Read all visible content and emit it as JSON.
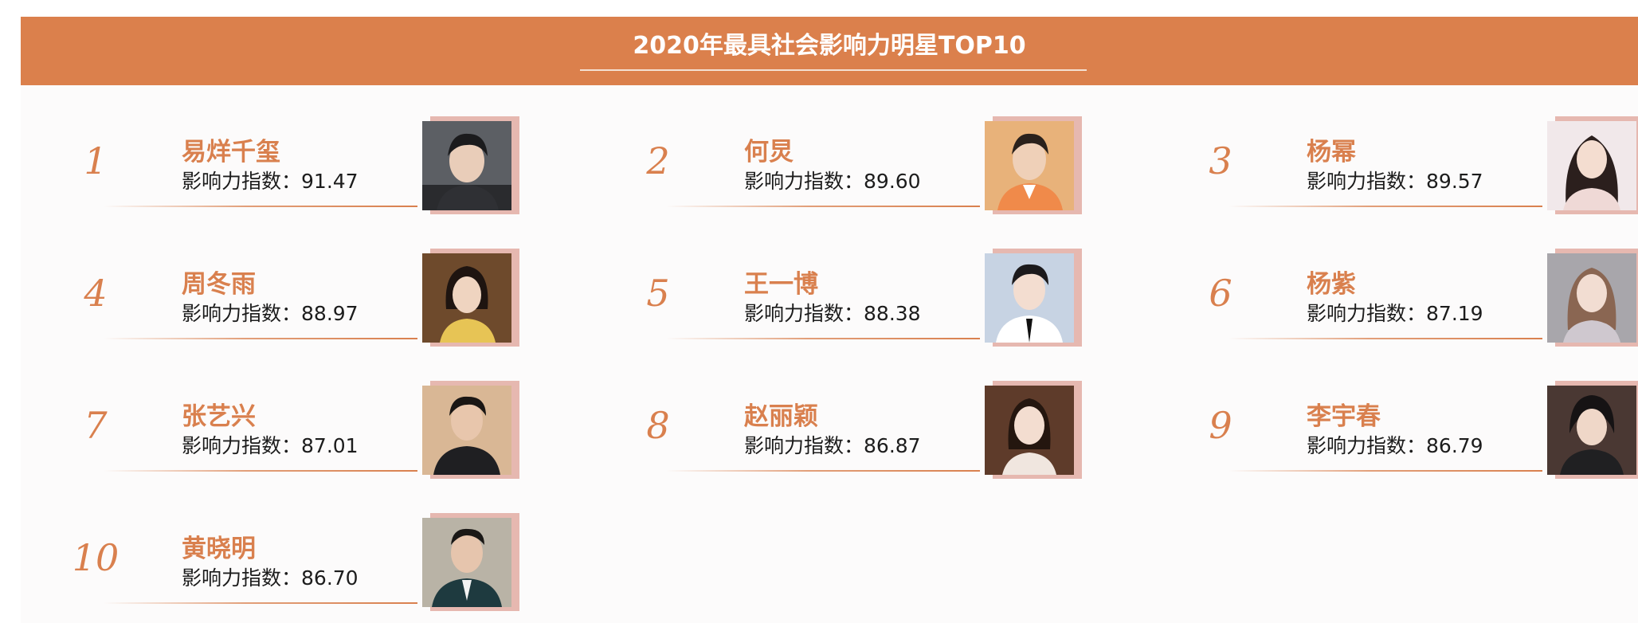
{
  "header": {
    "title": "2020年最具社会影响力明星TOP10"
  },
  "score_prefix": "影响力指数：",
  "colors": {
    "accent": "#db804c",
    "text_accent": "#d9804e",
    "photo_frame": "#e6b8b0",
    "background": "#fcfbfb"
  },
  "celebrities": [
    {
      "rank": "1",
      "name": "易烊千玺",
      "score": "91.47"
    },
    {
      "rank": "2",
      "name": "何炅",
      "score": "89.60"
    },
    {
      "rank": "3",
      "name": "杨幂",
      "score": "89.57"
    },
    {
      "rank": "4",
      "name": "周冬雨",
      "score": "88.97"
    },
    {
      "rank": "5",
      "name": "王一博",
      "score": "88.38"
    },
    {
      "rank": "6",
      "name": "杨紫",
      "score": "87.19"
    },
    {
      "rank": "7",
      "name": "张艺兴",
      "score": "87.01"
    },
    {
      "rank": "8",
      "name": "赵丽颖",
      "score": "86.87"
    },
    {
      "rank": "9",
      "name": "李宇春",
      "score": "86.79"
    },
    {
      "rank": "10",
      "name": "黄晓明",
      "score": "86.70"
    }
  ]
}
